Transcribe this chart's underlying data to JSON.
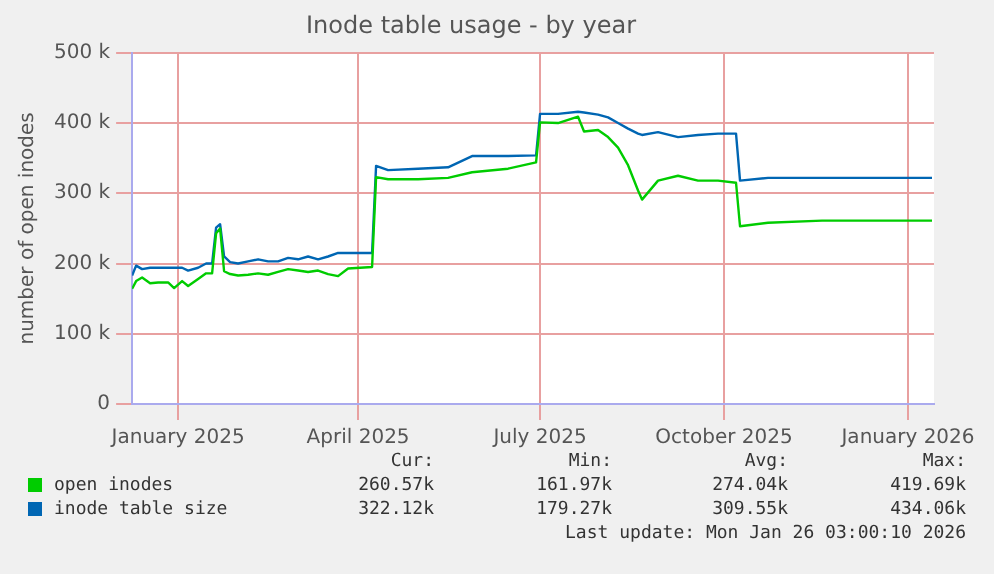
{
  "chart_data": {
    "type": "line",
    "title": "Inode table usage - by year",
    "ylabel": "number of open inodes",
    "x": [
      "2024-12-09",
      "2024-12-11",
      "2024-12-14",
      "2024-12-18",
      "2024-12-22",
      "2024-12-27",
      "2024-12-30",
      "2025-01-03",
      "2025-01-06",
      "2025-01-11",
      "2025-01-15",
      "2025-01-18",
      "2025-01-20",
      "2025-01-22",
      "2025-01-24",
      "2025-01-27",
      "2025-01-31",
      "2025-02-05",
      "2025-02-10",
      "2025-02-15",
      "2025-02-20",
      "2025-02-25",
      "2025-03-02",
      "2025-03-07",
      "2025-03-12",
      "2025-03-17",
      "2025-03-22",
      "2025-03-27",
      "2025-04-08",
      "2025-04-10",
      "2025-04-16",
      "2025-05-01",
      "2025-05-16",
      "2025-05-28",
      "2025-06-15",
      "2025-06-29",
      "2025-07-01",
      "2025-07-10",
      "2025-07-20",
      "2025-07-23",
      "2025-07-30",
      "2025-08-04",
      "2025-08-09",
      "2025-08-14",
      "2025-08-19",
      "2025-08-21",
      "2025-08-29",
      "2025-09-08",
      "2025-09-18",
      "2025-09-28",
      "2025-10-07",
      "2025-10-09",
      "2025-10-23",
      "2025-11-19",
      "2025-12-07",
      "2026-01-13"
    ],
    "series": [
      {
        "name": "open inodes",
        "color": "#00cc00",
        "values": [
          164000,
          175000,
          180000,
          172000,
          173000,
          173000,
          165000,
          175000,
          168000,
          178000,
          186000,
          186000,
          243000,
          250000,
          189000,
          185000,
          183000,
          184000,
          186000,
          184000,
          188000,
          192000,
          190000,
          188000,
          190000,
          185000,
          182000,
          193000,
          195000,
          323000,
          320000,
          320000,
          322000,
          330000,
          335000,
          344000,
          401000,
          400000,
          409000,
          388000,
          390000,
          380000,
          365000,
          340000,
          304000,
          291000,
          318000,
          325000,
          318000,
          318000,
          315000,
          253000,
          258000,
          261000,
          261000,
          261000
        ]
      },
      {
        "name": "inode table size",
        "color": "#0066b3",
        "values": [
          183000,
          197000,
          192000,
          194000,
          194000,
          194000,
          194000,
          194000,
          190000,
          194000,
          200000,
          200000,
          251000,
          256000,
          210000,
          202000,
          200000,
          203000,
          206000,
          203000,
          203000,
          208000,
          206000,
          210000,
          206000,
          210000,
          215000,
          215000,
          215000,
          339000,
          333000,
          335000,
          337000,
          353000,
          353000,
          354000,
          413000,
          413000,
          416000,
          415000,
          412000,
          408000,
          400000,
          392000,
          385000,
          383000,
          387000,
          380000,
          383000,
          385000,
          385000,
          318000,
          322000,
          322000,
          322000,
          322000
        ]
      }
    ],
    "xlim": [
      "2024-12-09",
      "2026-01-14"
    ],
    "xticks": [
      {
        "value": "2025-01-01",
        "label": "January 2025"
      },
      {
        "value": "2025-04-01",
        "label": "April 2025"
      },
      {
        "value": "2025-07-01",
        "label": "July 2025"
      },
      {
        "value": "2025-10-01",
        "label": "October 2025"
      },
      {
        "value": "2026-01-01",
        "label": "January 2026"
      }
    ],
    "ylim": [
      0,
      500000
    ],
    "yticks": [
      0,
      {
        "value": 100000,
        "label": "100 k"
      },
      {
        "value": 200000,
        "label": "200 k"
      },
      {
        "value": 300000,
        "label": "300 k"
      },
      {
        "value": 400000,
        "label": "400 k"
      },
      {
        "value": 500000,
        "label": "500 k"
      }
    ],
    "grid": true,
    "legend": "bottom",
    "marker": "none",
    "line_style": "solid",
    "annotations": [
      "Cur:",
      "Min:",
      "Avg:",
      "Max:",
      "260.57k",
      "161.97k",
      "274.04k",
      "419.69k",
      "322.12k",
      "179.27k",
      "309.55k",
      "434.06k",
      "Last update: Mon Jan 26 03:00:10 2026"
    ]
  }
}
